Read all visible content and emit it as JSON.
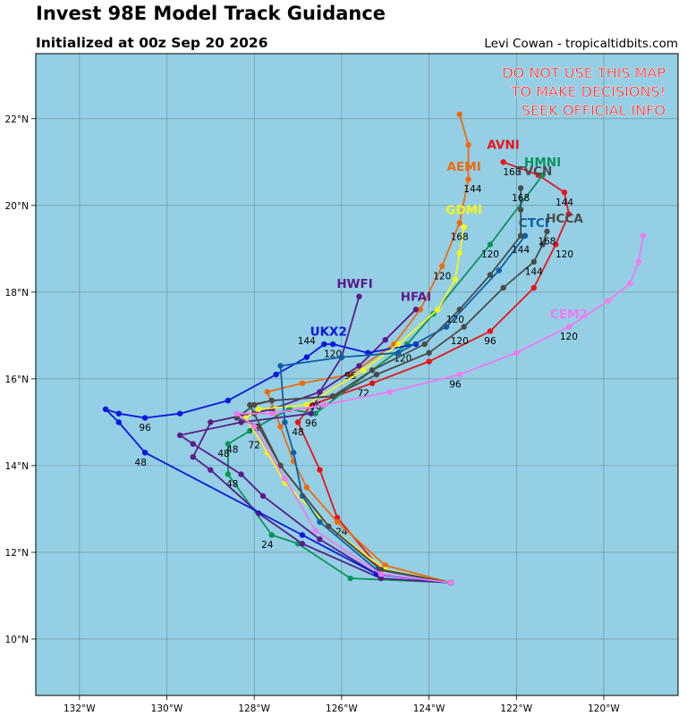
{
  "header": {
    "title": "Invest 98E Model Track Guidance",
    "subtitle": "Initialized at 00z Sep 20 2026",
    "credit": "Levi Cowan - tropicaltidbits.com"
  },
  "warning": [
    "DO NOT USE THIS MAP",
    "TO MAKE DECISIONS!",
    "SEEK OFFICIAL INFO"
  ],
  "colors": {
    "ocean": "#94cfe5",
    "grid": "#6a8b96",
    "frame": "#000000",
    "warning": "#ff1a1a"
  },
  "map": {
    "lon_range": [
      -133,
      -118.3
    ],
    "lat_range": [
      8.7,
      23.5
    ],
    "lon_ticks": [
      {
        "v": -132,
        "label": "132°W"
      },
      {
        "v": -130,
        "label": "130°W"
      },
      {
        "v": -128,
        "label": "128°W"
      },
      {
        "v": -126,
        "label": "126°W"
      },
      {
        "v": -124,
        "label": "124°W"
      },
      {
        "v": -122,
        "label": "122°W"
      },
      {
        "v": -120,
        "label": "120°W"
      }
    ],
    "lat_ticks": [
      {
        "v": 10,
        "label": "10°N"
      },
      {
        "v": 12,
        "label": "12°N"
      },
      {
        "v": 14,
        "label": "14°N"
      },
      {
        "v": 16,
        "label": "16°N"
      },
      {
        "v": 18,
        "label": "18°N"
      },
      {
        "v": 20,
        "label": "20°N"
      },
      {
        "v": 22,
        "label": "22°N"
      }
    ]
  },
  "tracks": [
    {
      "name": "AVNI",
      "color": "#e8131a",
      "label_at": [
        -122.3,
        21.3
      ],
      "points": [
        [
          -123.5,
          11.3
        ],
        [
          -125.1,
          11.6
        ],
        [
          -126.1,
          12.8
        ],
        [
          -126.5,
          13.9
        ],
        [
          -127.0,
          15.0
        ],
        [
          -126.7,
          15.4
        ],
        [
          -125.3,
          15.9
        ],
        [
          -124.0,
          16.4
        ],
        [
          -122.6,
          17.1
        ],
        [
          -121.6,
          18.1
        ],
        [
          -121.1,
          19.1
        ],
        [
          -120.8,
          19.8
        ],
        [
          -120.9,
          20.3
        ],
        [
          -121.5,
          20.7
        ],
        [
          -122.3,
          21.0
        ]
      ],
      "hours": [
        {
          "h": "24",
          "at": [
            -126.0,
            12.4
          ]
        },
        {
          "h": "48",
          "at": [
            -127.0,
            14.7
          ]
        },
        {
          "h": "96",
          "at": [
            -122.6,
            16.8
          ]
        },
        {
          "h": "120",
          "at": [
            -120.9,
            18.8
          ]
        },
        {
          "h": "144",
          "at": [
            -120.9,
            20.0
          ]
        },
        {
          "h": "168",
          "at": [
            -122.1,
            20.7
          ]
        }
      ]
    },
    {
      "name": "AEMI",
      "color": "#ef6b0c",
      "label_at": [
        -123.2,
        20.8
      ],
      "points": [
        [
          -123.5,
          11.3
        ],
        [
          -125.0,
          11.7
        ],
        [
          -126.1,
          12.7
        ],
        [
          -126.8,
          13.5
        ],
        [
          -127.1,
          14.1
        ],
        [
          -127.4,
          14.9
        ],
        [
          -127.7,
          15.7
        ],
        [
          -126.9,
          15.9
        ],
        [
          -125.8,
          16.1
        ],
        [
          -124.8,
          16.8
        ],
        [
          -124.2,
          17.6
        ],
        [
          -123.7,
          18.6
        ],
        [
          -123.3,
          19.6
        ],
        [
          -123.1,
          20.6
        ],
        [
          -123.1,
          21.4
        ],
        [
          -123.3,
          22.1
        ]
      ],
      "hours": [
        {
          "h": "120",
          "at": [
            -123.7,
            18.3
          ]
        },
        {
          "h": "144",
          "at": [
            -123.0,
            20.3
          ]
        }
      ]
    },
    {
      "name": "HMNI",
      "color": "#0a9359",
      "label_at": [
        -121.4,
        20.9
      ],
      "points": [
        [
          -123.5,
          11.3
        ],
        [
          -125.8,
          11.4
        ],
        [
          -127.0,
          12.2
        ],
        [
          -127.6,
          12.4
        ],
        [
          -128.6,
          13.8
        ],
        [
          -128.6,
          14.5
        ],
        [
          -128.1,
          14.8
        ],
        [
          -127.2,
          15.3
        ],
        [
          -126.6,
          15.2
        ],
        [
          -125.3,
          16.2
        ],
        [
          -124.5,
          16.8
        ],
        [
          -123.9,
          17.5
        ],
        [
          -122.6,
          19.1
        ],
        [
          -121.4,
          20.7
        ]
      ],
      "hours": [
        {
          "h": "24",
          "at": [
            -127.7,
            12.1
          ]
        },
        {
          "h": "48",
          "at": [
            -128.5,
            13.5
          ]
        },
        {
          "h": "72",
          "at": [
            -128.0,
            14.4
          ]
        },
        {
          "h": "96",
          "at": [
            -126.7,
            14.9
          ]
        },
        {
          "h": "120",
          "at": [
            -122.6,
            18.8
          ]
        }
      ]
    },
    {
      "name": "HFAI",
      "color": "#5a1b8c",
      "label_at": [
        -124.3,
        17.8
      ],
      "points": [
        [
          -123.5,
          11.3
        ],
        [
          -125.2,
          11.5
        ],
        [
          -126.5,
          12.3
        ],
        [
          -127.8,
          13.3
        ],
        [
          -128.3,
          13.8
        ],
        [
          -129.4,
          14.5
        ],
        [
          -129.7,
          14.7
        ],
        [
          -128.3,
          15.0
        ],
        [
          -126.7,
          15.2
        ],
        [
          -126.5,
          15.7
        ],
        [
          -125.6,
          16.3
        ],
        [
          -125.0,
          16.9
        ],
        [
          -124.3,
          17.6
        ]
      ],
      "hours": [
        {
          "h": "48",
          "at": [
            -128.5,
            14.3
          ]
        },
        {
          "h": "72",
          "at": [
            -128.0,
            14.8
          ]
        },
        {
          "h": "96",
          "at": [
            -126.6,
            15.3
          ]
        }
      ]
    },
    {
      "name": "HWFI",
      "color": "#5a1b8c",
      "label_at": [
        -125.7,
        18.1
      ],
      "points": [
        [
          -123.5,
          11.3
        ],
        [
          -125.1,
          11.4
        ],
        [
          -126.9,
          12.2
        ],
        [
          -127.9,
          12.9
        ],
        [
          -129.0,
          13.9
        ],
        [
          -129.4,
          14.2
        ],
        [
          -129.0,
          15.0
        ],
        [
          -127.6,
          15.3
        ],
        [
          -126.5,
          15.7
        ],
        [
          -126.0,
          16.5
        ],
        [
          -125.6,
          17.9
        ]
      ],
      "hours": [
        {
          "h": "48",
          "at": [
            -128.7,
            14.2
          ]
        },
        {
          "h": "96",
          "at": [
            -125.8,
            16.0
          ]
        }
      ]
    },
    {
      "name": "UKX2",
      "color": "#0b16e0",
      "label_at": [
        -126.3,
        17.0
      ],
      "points": [
        [
          -123.5,
          11.3
        ],
        [
          -125.2,
          11.5
        ],
        [
          -126.9,
          12.4
        ],
        [
          -130.5,
          14.3
        ],
        [
          -131.1,
          15.0
        ],
        [
          -131.4,
          15.3
        ],
        [
          -131.1,
          15.2
        ],
        [
          -130.5,
          15.1
        ],
        [
          -129.7,
          15.2
        ],
        [
          -128.6,
          15.5
        ],
        [
          -127.5,
          16.1
        ],
        [
          -126.8,
          16.5
        ],
        [
          -126.4,
          16.8
        ],
        [
          -126.2,
          16.8
        ],
        [
          -125.4,
          16.6
        ],
        [
          -124.3,
          16.8
        ]
      ],
      "hours": [
        {
          "h": "48",
          "at": [
            -130.6,
            14.0
          ]
        },
        {
          "h": "96",
          "at": [
            -130.5,
            14.8
          ]
        },
        {
          "h": "120",
          "at": [
            -126.2,
            16.5
          ]
        },
        {
          "h": "144",
          "at": [
            -126.8,
            16.8
          ]
        }
      ]
    },
    {
      "name": "GDMI",
      "color": "#f5f51a",
      "label_at": [
        -123.2,
        19.8
      ],
      "points": [
        [
          -123.5,
          11.3
        ],
        [
          -125.0,
          11.6
        ],
        [
          -126.3,
          12.6
        ],
        [
          -127.3,
          13.6
        ],
        [
          -127.7,
          14.3
        ],
        [
          -128.2,
          15.1
        ],
        [
          -127.9,
          15.3
        ],
        [
          -126.8,
          15.4
        ],
        [
          -125.5,
          16.2
        ],
        [
          -124.7,
          16.8
        ],
        [
          -123.8,
          17.6
        ],
        [
          -123.4,
          18.3
        ],
        [
          -123.3,
          18.9
        ],
        [
          -123.2,
          19.5
        ]
      ],
      "hours": [
        {
          "h": "120",
          "at": [
            -124.6,
            16.4
          ]
        },
        {
          "h": "168",
          "at": [
            -123.3,
            19.2
          ]
        }
      ]
    },
    {
      "name": "CTCI",
      "color": "#0d60a8",
      "label_at": [
        -121.6,
        19.5
      ],
      "points": [
        [
          -123.5,
          11.3
        ],
        [
          -125.2,
          11.6
        ],
        [
          -126.5,
          12.7
        ],
        [
          -126.9,
          13.3
        ],
        [
          -127.1,
          14.3
        ],
        [
          -127.3,
          15.0
        ],
        [
          -127.4,
          16.3
        ],
        [
          -126.0,
          16.5
        ],
        [
          -124.7,
          16.6
        ],
        [
          -123.6,
          17.2
        ],
        [
          -122.4,
          18.5
        ],
        [
          -121.8,
          19.3
        ]
      ],
      "hours": [
        {
          "h": "72",
          "at": [
            -125.5,
            15.6
          ]
        },
        {
          "h": "144",
          "at": [
            -121.9,
            18.9
          ]
        }
      ]
    },
    {
      "name": "TVCN",
      "color": "#4a4a4a",
      "label_at": [
        -121.6,
        20.7
      ],
      "points": [
        [
          -123.5,
          11.3
        ],
        [
          -125.1,
          11.6
        ],
        [
          -126.3,
          12.6
        ],
        [
          -127.4,
          14.0
        ],
        [
          -127.9,
          14.9
        ],
        [
          -128.4,
          15.1
        ],
        [
          -128.0,
          15.4
        ],
        [
          -127.6,
          15.5
        ],
        [
          -126.2,
          15.6
        ],
        [
          -125.3,
          16.2
        ],
        [
          -124.1,
          16.8
        ],
        [
          -123.3,
          17.6
        ],
        [
          -122.6,
          18.4
        ],
        [
          -121.9,
          19.3
        ],
        [
          -121.9,
          19.9
        ],
        [
          -121.9,
          20.4
        ]
      ],
      "hours": [
        {
          "h": "120",
          "at": [
            -123.4,
            17.3
          ]
        },
        {
          "h": "168",
          "at": [
            -121.9,
            20.1
          ]
        }
      ]
    },
    {
      "name": "HCCA",
      "color": "#4a4a4a",
      "label_at": [
        -120.9,
        19.6
      ],
      "points": [
        [
          -123.5,
          11.3
        ],
        [
          -125.1,
          11.6
        ],
        [
          -126.3,
          12.6
        ],
        [
          -127.4,
          14.0
        ],
        [
          -128.0,
          15.2
        ],
        [
          -128.1,
          15.4
        ],
        [
          -127.6,
          15.5
        ],
        [
          -126.2,
          15.6
        ],
        [
          -125.2,
          16.1
        ],
        [
          -124.0,
          16.6
        ],
        [
          -123.2,
          17.2
        ],
        [
          -122.3,
          18.1
        ],
        [
          -121.6,
          18.7
        ],
        [
          -121.4,
          19.1
        ],
        [
          -121.3,
          19.4
        ]
      ],
      "hours": [
        {
          "h": "120",
          "at": [
            -123.3,
            16.8
          ]
        },
        {
          "h": "144",
          "at": [
            -121.6,
            18.4
          ]
        },
        {
          "h": "168",
          "at": [
            -121.3,
            19.1
          ]
        }
      ]
    },
    {
      "name": "CEM2",
      "color": "#f07af0",
      "label_at": [
        -120.8,
        17.4
      ],
      "points": [
        [
          -123.5,
          11.3
        ],
        [
          -125.1,
          11.5
        ],
        [
          -126.6,
          12.5
        ],
        [
          -127.3,
          13.7
        ],
        [
          -128.0,
          14.9
        ],
        [
          -128.4,
          15.2
        ],
        [
          -127.6,
          15.2
        ],
        [
          -126.4,
          15.4
        ],
        [
          -124.9,
          15.7
        ],
        [
          -123.3,
          16.1
        ],
        [
          -122.0,
          16.6
        ],
        [
          -120.8,
          17.2
        ],
        [
          -119.9,
          17.8
        ],
        [
          -119.4,
          18.2
        ],
        [
          -119.2,
          18.7
        ],
        [
          -119.1,
          19.3
        ]
      ],
      "hours": [
        {
          "h": "96",
          "at": [
            -123.4,
            15.8
          ]
        },
        {
          "h": "120",
          "at": [
            -120.8,
            16.9
          ]
        }
      ]
    }
  ]
}
